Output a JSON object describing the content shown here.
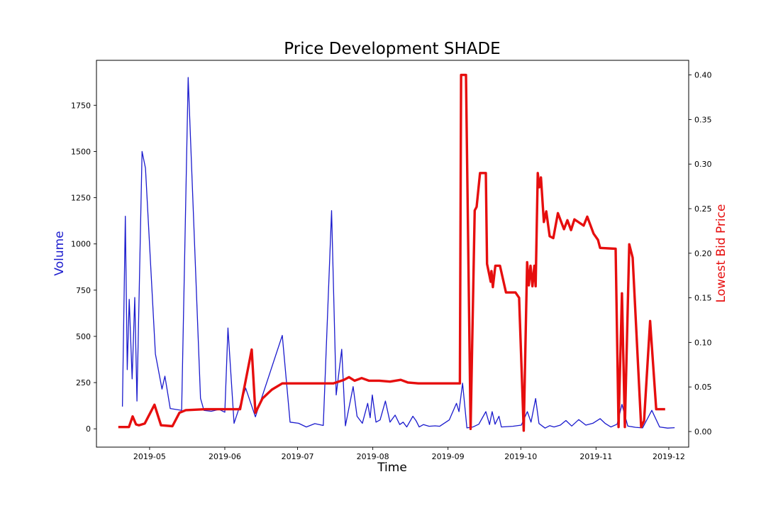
{
  "chart_data": {
    "type": "line",
    "title": "Price Development SHADE",
    "xlabel": "Time",
    "ylabel": "Volume",
    "y2label": "Lowest Bid Price",
    "x_unit": "days since 2019-05-01",
    "legend": "none",
    "grid": false,
    "colors": {
      "volume": "#1a1acd",
      "price": "#e60e0e"
    },
    "axes": {
      "x": {
        "range": [
          -21.9,
          222.2
        ],
        "ticks": [
          {
            "d": 0,
            "label": "2019-05"
          },
          {
            "d": 31,
            "label": "2019-06"
          },
          {
            "d": 61,
            "label": "2019-07"
          },
          {
            "d": 92,
            "label": "2019-08"
          },
          {
            "d": 123,
            "label": "2019-09"
          },
          {
            "d": 153,
            "label": "2019-10"
          },
          {
            "d": 184,
            "label": "2019-11"
          },
          {
            "d": 214,
            "label": "2019-12"
          }
        ]
      },
      "y_left": {
        "range": [
          -99,
          1993
        ],
        "ticks": [
          0,
          250,
          500,
          750,
          1000,
          1250,
          1500,
          1750
        ]
      },
      "y_right": {
        "range": [
          -0.0175,
          0.4164
        ],
        "ticks": [
          {
            "v": 0.0,
            "label": "0.00"
          },
          {
            "v": 0.05,
            "label": "0.05"
          },
          {
            "v": 0.1,
            "label": "0.10"
          },
          {
            "v": 0.15,
            "label": "0.15"
          },
          {
            "v": 0.2,
            "label": "0.20"
          },
          {
            "v": 0.25,
            "label": "0.25"
          },
          {
            "v": 0.3,
            "label": "0.30"
          },
          {
            "v": 0.35,
            "label": "0.35"
          },
          {
            "v": 0.4,
            "label": "0.40"
          }
        ]
      }
    },
    "series": [
      {
        "name": "Volume",
        "axis": "left",
        "color": "#1a1acd",
        "width": 1.3,
        "points": [
          [
            -11.2,
            120
          ],
          [
            -10,
            1150
          ],
          [
            -9.2,
            320
          ],
          [
            -8.4,
            700
          ],
          [
            -7.2,
            270
          ],
          [
            -6.1,
            710
          ],
          [
            -5.2,
            150
          ],
          [
            -3.1,
            1500
          ],
          [
            -1.7,
            1410
          ],
          [
            2.4,
            405
          ],
          [
            5.1,
            215
          ],
          [
            6.3,
            285
          ],
          [
            8.5,
            110
          ],
          [
            13.2,
            100
          ],
          [
            15.9,
            1900
          ],
          [
            21,
            165
          ],
          [
            22.4,
            100
          ],
          [
            25.4,
            95
          ],
          [
            28.7,
            105
          ],
          [
            31,
            90
          ],
          [
            32.3,
            545
          ],
          [
            34.8,
            30
          ],
          [
            39.6,
            220
          ],
          [
            43.6,
            65
          ],
          [
            54.7,
            505
          ],
          [
            57.9,
            36
          ],
          [
            61.4,
            30
          ],
          [
            64.6,
            10
          ],
          [
            68.1,
            28
          ],
          [
            71.6,
            18
          ],
          [
            75,
            1180
          ],
          [
            76.9,
            183
          ],
          [
            79.2,
            430
          ],
          [
            80.7,
            16
          ],
          [
            83.9,
            228
          ],
          [
            85.5,
            68
          ],
          [
            87.7,
            30
          ],
          [
            89.9,
            138
          ],
          [
            90.9,
            60
          ],
          [
            91.8,
            183
          ],
          [
            93.3,
            36
          ],
          [
            95,
            48
          ],
          [
            97.2,
            150
          ],
          [
            99.1,
            36
          ],
          [
            101.2,
            74
          ],
          [
            103.1,
            23
          ],
          [
            104.5,
            36
          ],
          [
            106,
            10
          ],
          [
            108.5,
            68
          ],
          [
            109.9,
            42
          ],
          [
            111.1,
            10
          ],
          [
            112.9,
            23
          ],
          [
            115.2,
            14
          ],
          [
            117.7,
            16
          ],
          [
            119.6,
            14
          ],
          [
            123.5,
            48
          ],
          [
            126.5,
            138
          ],
          [
            127.5,
            93
          ],
          [
            129,
            247
          ],
          [
            130.8,
            5
          ],
          [
            133.3,
            10
          ],
          [
            135.7,
            25
          ],
          [
            138.6,
            93
          ],
          [
            140.1,
            23
          ],
          [
            141.2,
            93
          ],
          [
            142.4,
            25
          ],
          [
            144,
            68
          ],
          [
            145,
            10
          ],
          [
            147.4,
            12
          ],
          [
            149.7,
            14
          ],
          [
            153.2,
            20
          ],
          [
            155.7,
            93
          ],
          [
            157.2,
            36
          ],
          [
            159.1,
            164
          ],
          [
            160.5,
            29
          ],
          [
            163,
            4
          ],
          [
            164.9,
            17
          ],
          [
            166.7,
            10
          ],
          [
            169.3,
            20
          ],
          [
            171.6,
            45
          ],
          [
            174,
            15
          ],
          [
            176.9,
            50
          ],
          [
            179.8,
            20
          ],
          [
            182.7,
            30
          ],
          [
            185.7,
            55
          ],
          [
            187.7,
            30
          ],
          [
            190.1,
            10
          ],
          [
            192.7,
            25
          ],
          [
            194.7,
            132
          ],
          [
            197.1,
            15
          ],
          [
            200.3,
            8
          ],
          [
            203.2,
            5
          ],
          [
            207,
            100
          ],
          [
            210.2,
            10
          ],
          [
            213.5,
            4
          ],
          [
            216.4,
            6
          ]
        ]
      },
      {
        "name": "Lowest Bid Price",
        "axis": "right",
        "color": "#e60e0e",
        "width": 3.4,
        "points": [
          [
            -12.9,
            0.005
          ],
          [
            -8.5,
            0.005
          ],
          [
            -7.0,
            0.017
          ],
          [
            -5.6,
            0.008
          ],
          [
            -4.4,
            0.007
          ],
          [
            -2.0,
            0.009
          ],
          [
            2.0,
            0.03
          ],
          [
            4.7,
            0.007
          ],
          [
            9.4,
            0.006
          ],
          [
            12.3,
            0.021
          ],
          [
            14.9,
            0.024
          ],
          [
            23.0,
            0.025
          ],
          [
            32.0,
            0.025
          ],
          [
            37.3,
            0.025
          ],
          [
            42.1,
            0.092
          ],
          [
            43.6,
            0.021
          ],
          [
            46.5,
            0.037
          ],
          [
            50.4,
            0.047
          ],
          [
            54.7,
            0.054
          ],
          [
            67.0,
            0.054
          ],
          [
            75.7,
            0.054
          ],
          [
            80.1,
            0.058
          ],
          [
            82.2,
            0.061
          ],
          [
            84.5,
            0.057
          ],
          [
            87.4,
            0.06
          ],
          [
            90.4,
            0.057
          ],
          [
            94.7,
            0.057
          ],
          [
            99.1,
            0.056
          ],
          [
            103.5,
            0.058
          ],
          [
            106.4,
            0.055
          ],
          [
            110.8,
            0.054
          ],
          [
            119.6,
            0.054
          ],
          [
            127.9,
            0.054
          ],
          [
            128.4,
            0.4
          ],
          [
            130.4,
            0.4
          ],
          [
            132.3,
            0.003
          ],
          [
            134.0,
            0.248
          ],
          [
            134.8,
            0.252
          ],
          [
            136.2,
            0.29
          ],
          [
            138.6,
            0.29
          ],
          [
            139.1,
            0.188
          ],
          [
            140.6,
            0.168
          ],
          [
            140.9,
            0.18
          ],
          [
            141.5,
            0.162
          ],
          [
            142.5,
            0.186
          ],
          [
            144.4,
            0.186
          ],
          [
            146.9,
            0.156
          ],
          [
            150.8,
            0.156
          ],
          [
            152.3,
            0.15
          ],
          [
            154.2,
            0.001
          ],
          [
            155.6,
            0.19
          ],
          [
            156.3,
            0.164
          ],
          [
            157.0,
            0.186
          ],
          [
            157.8,
            0.163
          ],
          [
            158.6,
            0.186
          ],
          [
            159.1,
            0.163
          ],
          [
            160.0,
            0.29
          ],
          [
            160.6,
            0.274
          ],
          [
            161.3,
            0.285
          ],
          [
            162.5,
            0.235
          ],
          [
            163.5,
            0.247
          ],
          [
            164.9,
            0.219
          ],
          [
            166.4,
            0.217
          ],
          [
            168.3,
            0.245
          ],
          [
            169.8,
            0.234
          ],
          [
            170.8,
            0.227
          ],
          [
            172.2,
            0.237
          ],
          [
            173.7,
            0.226
          ],
          [
            175.1,
            0.238
          ],
          [
            178.9,
            0.231
          ],
          [
            180.4,
            0.241
          ],
          [
            183.0,
            0.222
          ],
          [
            184.8,
            0.215
          ],
          [
            185.7,
            0.206
          ],
          [
            192.1,
            0.205
          ],
          [
            193.3,
            0.005
          ],
          [
            194.7,
            0.155
          ],
          [
            195.9,
            0.005
          ],
          [
            197.7,
            0.21
          ],
          [
            199.1,
            0.195
          ],
          [
            202.6,
            0.005
          ],
          [
            203.8,
            0.012
          ],
          [
            206.3,
            0.124
          ],
          [
            208.8,
            0.025
          ],
          [
            212.5,
            0.025
          ]
        ]
      }
    ]
  }
}
